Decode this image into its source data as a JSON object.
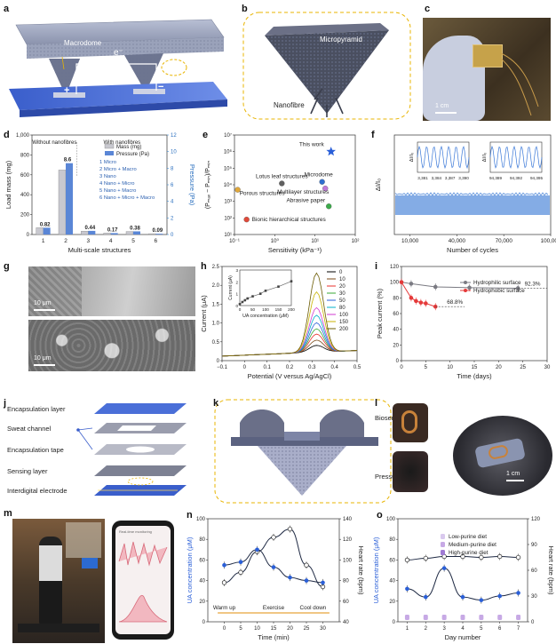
{
  "panels": {
    "a": {
      "label": "a",
      "macrodome": "Macrodome",
      "electron": "e⁻",
      "plus": "+",
      "minus": "−"
    },
    "b": {
      "label": "b",
      "micropyramid": "Micropyramid",
      "nanofibre": "Nanofibre"
    },
    "c": {
      "label": "c",
      "scale": "1 cm"
    },
    "g": {
      "label": "g",
      "scale_top": "10 μm",
      "scale_bottom": "10 μm"
    },
    "j": {
      "label": "j",
      "layers": [
        "Encapsulation layer",
        "Sweat channel",
        "Encapsulation tape",
        "Sensing layer",
        "Interdigital electrode"
      ]
    },
    "k": {
      "label": "k"
    },
    "l": {
      "label": "l",
      "biosensor": "Biosensor",
      "pressure_sensor": "Pressure sensor",
      "scale": "1 cm"
    },
    "m": {
      "label": "m",
      "phone_title": "Real-time monitoring"
    }
  },
  "chart_data": [
    {
      "id": "d",
      "label": "d",
      "type": "bar",
      "xlabel": "Multi-scale structures",
      "ylabel": "Load mass (mg)",
      "y2label": "Pressure (Pa)",
      "categories": [
        "1",
        "2",
        "3",
        "4",
        "5",
        "6"
      ],
      "ylim": [
        0,
        1000
      ],
      "yticks": [
        "0",
        "200",
        "400",
        "600",
        "800",
        "1,000"
      ],
      "y2lim": [
        0,
        12
      ],
      "y2ticks": [
        "0",
        "2",
        "4",
        "6",
        "8",
        "10",
        "12"
      ],
      "series": [
        {
          "name": "Mass (mg)",
          "values": [
            68,
            648,
            34,
            14,
            30,
            8
          ]
        },
        {
          "name": "Pressure (Pa)",
          "values": [
            0.82,
            8.6,
            0.44,
            0.17,
            0.38,
            0.09
          ]
        }
      ],
      "value_labels": [
        "0.82",
        "8.6",
        "0.44",
        "0.17",
        "0.38",
        "0.09"
      ],
      "group_labels": [
        "Without nanofibres",
        "With nanofibres"
      ],
      "legend_items": [
        "1 Micro",
        "2 Micro + Macro",
        "3 Nano",
        "4 Nano + Micro",
        "5 Nano + Macro",
        "6 Nano + Micro + Macro"
      ],
      "colors": {
        "mass": "#c8c8cf",
        "pressure": "#5a86d6"
      }
    },
    {
      "id": "e",
      "label": "e",
      "type": "scatter",
      "xlabel": "Sensitivity (kPa⁻¹)",
      "ylabel": "(Pₘₐₓ − Pₘᵢₙ)/Pₘᵢₙ",
      "xscale": "log",
      "yscale": "log",
      "xticks": [
        "10⁻¹",
        "10⁰",
        "10¹",
        "10²"
      ],
      "yticks": [
        "10¹",
        "10²",
        "10³",
        "10⁴",
        "10⁵",
        "10⁶",
        "10⁷"
      ],
      "points": [
        {
          "name": "This work",
          "x": 25,
          "y": 1000000,
          "color": "#2a5fd8",
          "marker": "star"
        },
        {
          "name": "Lotus leaf structures",
          "x": 1.5,
          "y": 12000,
          "color": "#606060"
        },
        {
          "name": "Porous structures",
          "x": 0.12,
          "y": 5000,
          "color": "#e0a73a"
        },
        {
          "name": "Microdome",
          "x": 15,
          "y": 15000,
          "color": "#2f6fd0"
        },
        {
          "name": "Multilayer structures",
          "x": 18,
          "y": 6000,
          "color": "#c07ad8"
        },
        {
          "name": "Abrasive paper",
          "x": 22,
          "y": 500,
          "color": "#3cab4b"
        },
        {
          "name": "Bionic hierarchical structures",
          "x": 0.2,
          "y": 80,
          "color": "#e04a3a"
        }
      ]
    },
    {
      "id": "f",
      "label": "f",
      "type": "area",
      "xlabel": "Number of cycles",
      "ylabel": "ΔI/I₀",
      "xticks": [
        "10,000",
        "40,000",
        "70,000",
        "100,000"
      ],
      "xlim": [
        0,
        100000
      ],
      "inset_left_ticks": [
        "3,381",
        "3,384",
        "3,387",
        "3,390"
      ],
      "inset_right_ticks": [
        "94,389",
        "94,392",
        "94,395"
      ],
      "inset_ylabel": "ΔI/I₀",
      "color": "#6f9ee0"
    },
    {
      "id": "h",
      "label": "h",
      "type": "line",
      "xlabel": "Potential (V versus Ag/AgCl)",
      "ylabel": "Current (μA)",
      "xlim": [
        -0.1,
        0.5
      ],
      "ylim": [
        0,
        2.5
      ],
      "xticks": [
        "−0.1",
        "0",
        "0.1",
        "0.2",
        "0.3",
        "0.4",
        "0.5"
      ],
      "yticks": [
        "0",
        "0.5",
        "1.0",
        "1.5",
        "2.0",
        "2.5"
      ],
      "series": [
        {
          "name": "0",
          "peak": 0.18,
          "color": "#000000"
        },
        {
          "name": "10",
          "peak": 0.32,
          "color": "#7a4a1a"
        },
        {
          "name": "20",
          "peak": 0.48,
          "color": "#e8312e"
        },
        {
          "name": "30",
          "peak": 0.62,
          "color": "#3aa836"
        },
        {
          "name": "50",
          "peak": 0.78,
          "color": "#2a5fd8"
        },
        {
          "name": "80",
          "peak": 0.98,
          "color": "#00b0c8"
        },
        {
          "name": "100",
          "peak": 1.18,
          "color": "#d23bd0"
        },
        {
          "name": "150",
          "peak": 1.6,
          "color": "#c9b300"
        },
        {
          "name": "200",
          "peak": 2.1,
          "color": "#6a5a00"
        }
      ],
      "inset": {
        "xlabel": "UA concentration (μM)",
        "ylabel": "Current (μA)",
        "x": [
          0,
          10,
          20,
          30,
          50,
          80,
          100,
          150,
          200
        ],
        "y": [
          0.12,
          0.3,
          0.45,
          0.6,
          0.78,
          1.0,
          1.25,
          1.6,
          2.05
        ],
        "xticks": [
          "0",
          "50",
          "100",
          "150",
          "200"
        ],
        "yticks": [
          "0",
          "1",
          "2",
          "3"
        ]
      }
    },
    {
      "id": "i",
      "label": "i",
      "type": "line",
      "xlabel": "Time (days)",
      "ylabel": "Peak current (%)",
      "xlim": [
        0,
        30
      ],
      "ylim": [
        0,
        120
      ],
      "xticks": [
        "0",
        "5",
        "10",
        "15",
        "20",
        "25",
        "30"
      ],
      "yticks": [
        "0",
        "20",
        "40",
        "60",
        "80",
        "100",
        "120"
      ],
      "series": [
        {
          "name": "Hydrophilic surface",
          "x": [
            0,
            2,
            7,
            14,
            24
          ],
          "y": [
            100,
            98,
            94,
            93,
            92.3
          ],
          "color": "#7a7a82"
        },
        {
          "name": "Hydrophobic surface",
          "x": [
            0,
            2,
            3,
            4,
            5,
            7
          ],
          "y": [
            100,
            80,
            76,
            74,
            73,
            68.8
          ],
          "color": "#e53a3a"
        }
      ],
      "annotations": [
        "92.3%",
        "68.8%"
      ]
    },
    {
      "id": "n",
      "label": "n",
      "type": "line",
      "xlabel": "Time (min)",
      "ylabel": "UA concentration (μM)",
      "y2label": "Heart rate (bpm)",
      "xlim": [
        -5,
        35
      ],
      "ylim": [
        0,
        100
      ],
      "y2lim": [
        40,
        140
      ],
      "xticks": [
        "0",
        "5",
        "10",
        "15",
        "20",
        "25",
        "30"
      ],
      "yticks": [
        "0",
        "20",
        "40",
        "60",
        "80",
        "100"
      ],
      "y2ticks": [
        "40",
        "60",
        "80",
        "100",
        "120",
        "140"
      ],
      "series": [
        {
          "name": "UA",
          "x": [
            0,
            5,
            10,
            15,
            20,
            25,
            30
          ],
          "y": [
            38,
            48,
            68,
            82,
            90,
            55,
            34
          ],
          "axis": "left",
          "color": "#1f2a44"
        },
        {
          "name": "Heart rate",
          "x": [
            0,
            5,
            10,
            15,
            20,
            25,
            30
          ],
          "y": [
            95,
            98,
            110,
            93,
            83,
            80,
            78
          ],
          "axis": "right",
          "color": "#1f2a44"
        }
      ],
      "phases": [
        "Warm up",
        "Exercise",
        "Cool down"
      ]
    },
    {
      "id": "o",
      "label": "o",
      "type": "line",
      "xlabel": "Day number",
      "ylabel": "UA concentration (μM)",
      "y2label": "Heart rate (bpm)",
      "xlim": [
        0.5,
        7.5
      ],
      "ylim": [
        0,
        100
      ],
      "y2lim": [
        0,
        120
      ],
      "xticks": [
        "1",
        "2",
        "3",
        "4",
        "5",
        "6",
        "7"
      ],
      "yticks": [
        "0",
        "20",
        "40",
        "60",
        "80",
        "100"
      ],
      "y2ticks": [
        "0",
        "30",
        "60",
        "90",
        "120"
      ],
      "series": [
        {
          "name": "UA",
          "x": [
            1,
            2,
            3,
            4,
            5,
            6,
            7
          ],
          "y": [
            32,
            24,
            52,
            24,
            21,
            25,
            28
          ],
          "axis": "left",
          "color": "#1f2a44"
        },
        {
          "name": "Heart rate",
          "x": [
            1,
            2,
            3,
            4,
            5,
            6,
            7
          ],
          "y": [
            72,
            74,
            76,
            76,
            75,
            76,
            75
          ],
          "axis": "right",
          "color": "#1f2a44"
        }
      ],
      "legend_items": [
        "Low-purine diet",
        "Medium-purine diet",
        "High-purine diet"
      ],
      "legend_colors": [
        "#d9c9ee",
        "#c7a9e5",
        "#9f7ad3"
      ]
    }
  ]
}
